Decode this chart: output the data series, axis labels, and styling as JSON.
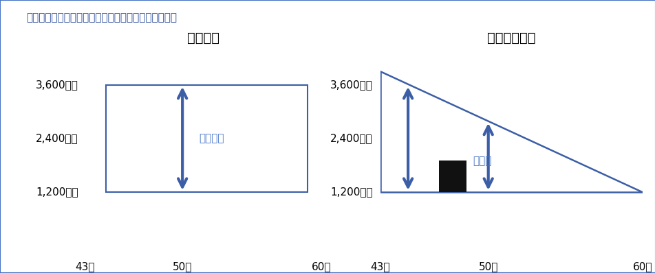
{
  "title": "＜定期保険と収入保障保険の保険金額のイメージ図＞",
  "title_fontsize": 11,
  "title_color": "#2B4C9B",
  "background_color": "#FFFFFF",
  "border_color": "#4472C4",
  "left_title": "定期保険",
  "right_title": "収入保障保険",
  "subtitle_fontsize": 14,
  "y_labels": [
    "1,200万円",
    "2,400万円",
    "3,600万円"
  ],
  "y_values": [
    1200,
    2400,
    3600
  ],
  "x_labels": [
    "43歳",
    "50歳",
    "60歳"
  ],
  "arrow_color": "#3B5EA6",
  "box_color": "#3B5EA6",
  "triangle_line_color": "#3B5EA6",
  "annotation_fontsize": 11,
  "axis_fontsize": 11,
  "black_rect_color": "#111111",
  "label_color": "#4472C4"
}
